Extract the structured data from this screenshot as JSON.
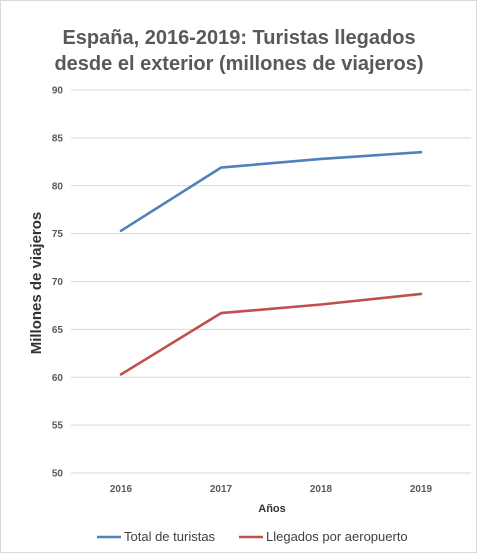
{
  "chart_data": {
    "type": "line",
    "title_lines": [
      "España, 2016-2019: Turistas llegados",
      "desde el exterior (millones de viajeros)"
    ],
    "xlabel": "Años",
    "ylabel": "Millones de viajeros",
    "categories": [
      "2016",
      "2017",
      "2018",
      "2019"
    ],
    "ylim": [
      50,
      90
    ],
    "yticks": [
      50,
      55,
      60,
      65,
      70,
      75,
      80,
      85,
      90
    ],
    "grid": true,
    "legend_position": "bottom",
    "series": [
      {
        "name": "Total de turistas",
        "color": "#4f81bd",
        "values": [
          75.3,
          81.9,
          82.8,
          83.5
        ]
      },
      {
        "name": "Llegados por aeropuerto",
        "color": "#c0504d",
        "values": [
          60.3,
          66.7,
          67.6,
          68.7
        ]
      }
    ]
  }
}
